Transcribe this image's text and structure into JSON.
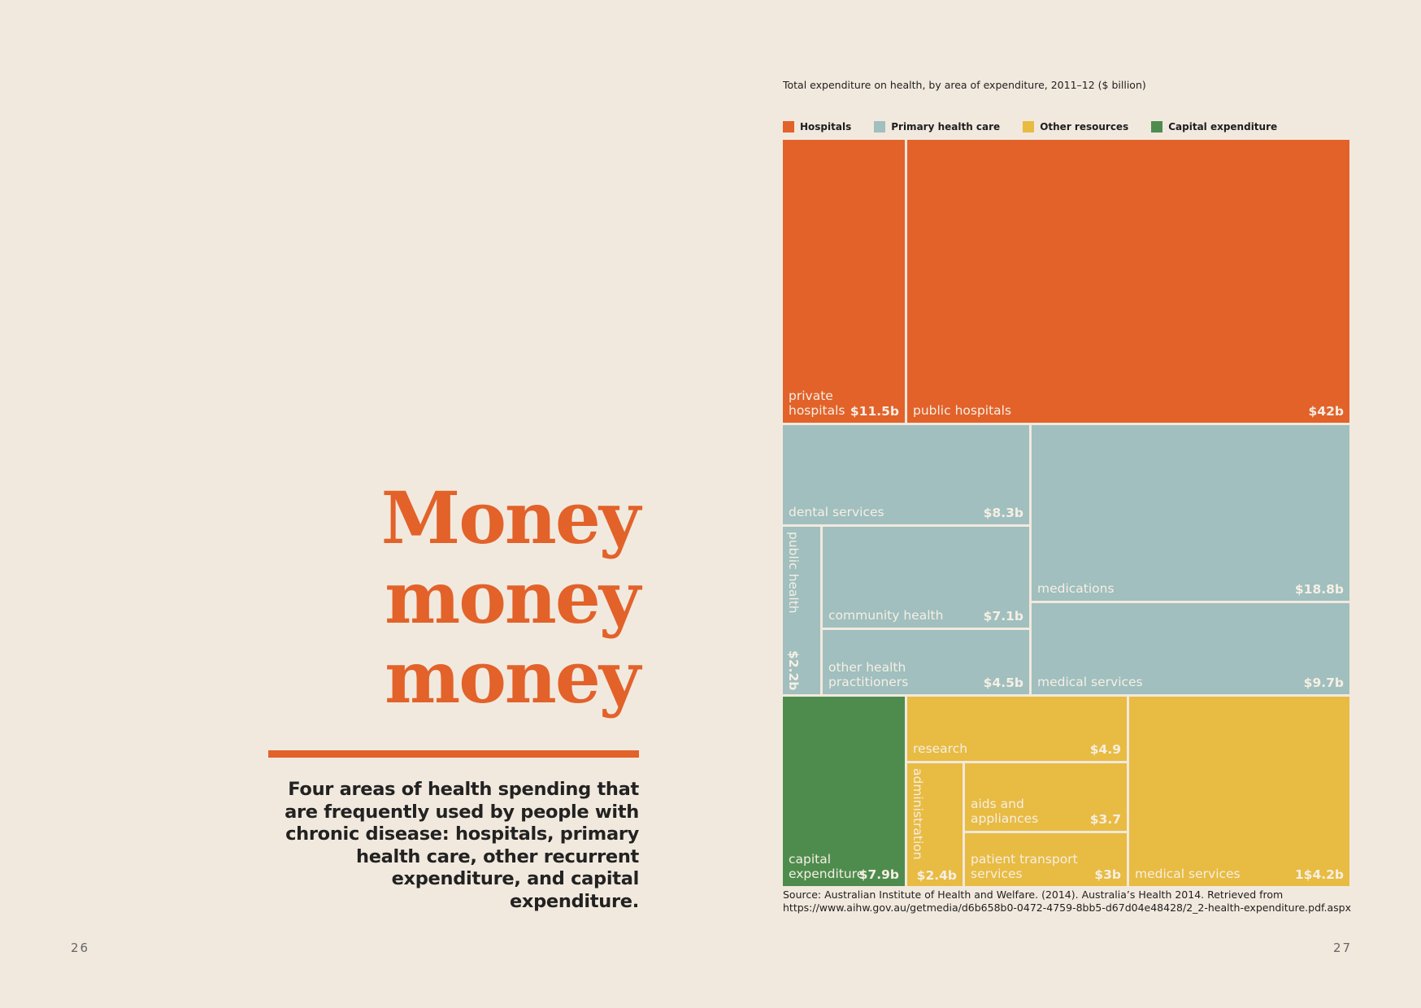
{
  "page": {
    "title_lines": [
      "Money",
      "money",
      "money"
    ],
    "intro": "Four areas of health spending that are frequently used by people with chronic disease: hospitals, primary health care, other recurrent expenditure, and capital expenditure.",
    "page_left": "26",
    "page_right": "27",
    "source": "Source: Australian Institute of Health and Welfare. (2014). Australia’s Health 2014.  Retrieved from https://www.aihw.gov.au/getmedia/d6b658b0-0472-4759-8bb5-d67d04e48428/2_2-health-expenditure.pdf.aspx"
  },
  "chart_data": {
    "type": "treemap",
    "title": "Total expenditure on health, by area of expenditure, 2011–12 ($ billion)",
    "legend": [
      {
        "name": "Hospitals",
        "color": "#e2622a"
      },
      {
        "name": "Primary health care",
        "color": "#a0bfbe"
      },
      {
        "name": "Other resources",
        "color": "#e8bb42"
      },
      {
        "name": "Capital expenditure",
        "color": "#4e8c4e"
      }
    ],
    "cells": [
      {
        "id": "private-hospitals",
        "category": "Hospitals",
        "label": [
          "private",
          "hospitals"
        ],
        "value_label": "$11.5b",
        "value": 11.5
      },
      {
        "id": "public-hospitals",
        "category": "Hospitals",
        "label": [
          "public hospitals"
        ],
        "value_label": "$42b",
        "value": 42
      },
      {
        "id": "dental-services",
        "category": "Primary health care",
        "label": [
          "dental services"
        ],
        "value_label": "$8.3b",
        "value": 8.3
      },
      {
        "id": "public-health",
        "category": "Primary health care",
        "label": [
          "public health"
        ],
        "value_label": "$2.2b",
        "value": 2.2,
        "vertical": true
      },
      {
        "id": "community-health",
        "category": "Primary health care",
        "label": [
          "community health"
        ],
        "value_label": "$7.1b",
        "value": 7.1
      },
      {
        "id": "other-health-practitioners",
        "category": "Primary health care",
        "label": [
          "other health",
          "practitioners"
        ],
        "value_label": "$4.5b",
        "value": 4.5
      },
      {
        "id": "medications",
        "category": "Primary health care",
        "label": [
          "medications"
        ],
        "value_label": "$18.8b",
        "value": 18.8
      },
      {
        "id": "medical-services-primary",
        "category": "Primary health care",
        "label": [
          "medical services"
        ],
        "value_label": "$9.7b",
        "value": 9.7
      },
      {
        "id": "capital-expenditure",
        "category": "Capital expenditure",
        "label": [
          "capital",
          "expenditure"
        ],
        "value_label": "$7.9b",
        "value": 7.9
      },
      {
        "id": "research",
        "category": "Other resources",
        "label": [
          "research"
        ],
        "value_label": "$4.9",
        "value": 4.9
      },
      {
        "id": "administration",
        "category": "Other resources",
        "label": [
          "administration"
        ],
        "value_label": "$2.4b",
        "value": 2.4,
        "vertical": true
      },
      {
        "id": "aids-and-appliances",
        "category": "Other resources",
        "label": [
          "aids and",
          "appliances"
        ],
        "value_label": "$3.7",
        "value": 3.7
      },
      {
        "id": "patient-transport-services",
        "category": "Other resources",
        "label": [
          "patient transport",
          "services"
        ],
        "value_label": "$3b",
        "value": 3
      },
      {
        "id": "medical-services-other",
        "category": "Other resources",
        "label": [
          "medical services"
        ],
        "value_label": "1$4.2b",
        "value": 14.2
      }
    ]
  }
}
